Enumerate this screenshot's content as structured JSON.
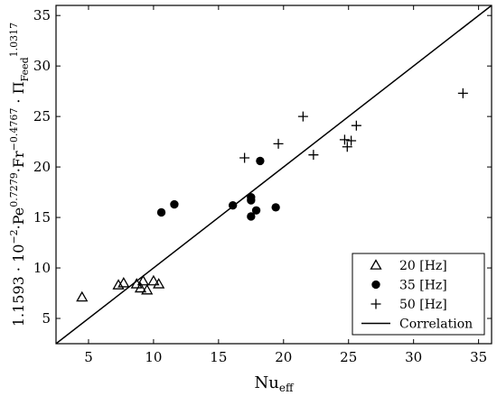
{
  "chart_data": {
    "type": "scatter",
    "xlabel": {
      "base": "Nu",
      "sub": "eff"
    },
    "ylabel": {
      "parts": [
        {
          "t": "1.1593 · 10"
        },
        {
          "t": "−2",
          "sup": true
        },
        {
          "t": "·Pe"
        },
        {
          "t": "0.7279",
          "sup": true
        },
        {
          "t": "·Fr"
        },
        {
          "t": "−0.4767",
          "sup": true
        },
        {
          "t": " · Π"
        },
        {
          "t": "Feed",
          "sub": true
        },
        {
          "t": "1.0317",
          "sup": true
        }
      ]
    },
    "xlim": [
      2.5,
      36
    ],
    "ylim": [
      2.5,
      36
    ],
    "xticks": [
      5,
      10,
      15,
      20,
      25,
      30,
      35
    ],
    "yticks": [
      5,
      10,
      15,
      20,
      25,
      30,
      35
    ],
    "grid": false,
    "legend_position": "bottom-right",
    "series": [
      {
        "name": "20 [Hz]",
        "marker": "triangle",
        "points": [
          [
            4.5,
            7.1
          ],
          [
            7.3,
            8.3
          ],
          [
            7.7,
            8.5
          ],
          [
            8.7,
            8.4
          ],
          [
            9.0,
            8.0
          ],
          [
            9.2,
            8.7
          ],
          [
            9.5,
            7.8
          ],
          [
            10.0,
            8.7
          ],
          [
            10.4,
            8.4
          ]
        ]
      },
      {
        "name": "35 [Hz]",
        "marker": "circle",
        "points": [
          [
            10.6,
            15.5
          ],
          [
            11.6,
            16.3
          ],
          [
            16.1,
            16.2
          ],
          [
            17.5,
            16.7
          ],
          [
            17.5,
            17.0
          ],
          [
            17.5,
            15.1
          ],
          [
            17.9,
            15.7
          ],
          [
            18.2,
            20.6
          ],
          [
            19.4,
            16.0
          ]
        ]
      },
      {
        "name": "50 [Hz]",
        "marker": "plus",
        "points": [
          [
            17.0,
            20.9
          ],
          [
            19.6,
            22.3
          ],
          [
            21.5,
            25.0
          ],
          [
            22.3,
            21.2
          ],
          [
            24.7,
            22.7
          ],
          [
            24.9,
            22.0
          ],
          [
            25.2,
            22.6
          ],
          [
            25.6,
            24.1
          ],
          [
            33.8,
            27.3
          ]
        ]
      },
      {
        "name": "Correlation",
        "marker": "line",
        "points": [
          [
            2.5,
            2.5
          ],
          [
            36,
            36
          ]
        ]
      }
    ]
  }
}
